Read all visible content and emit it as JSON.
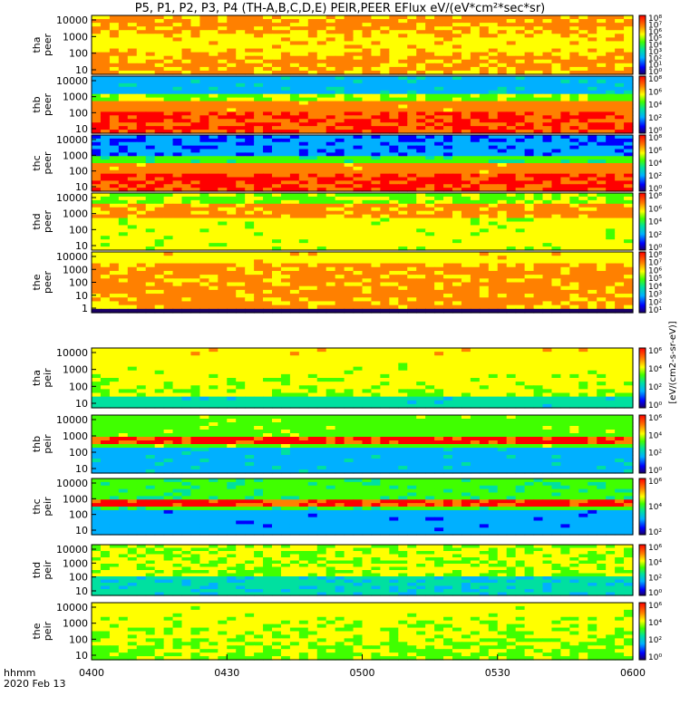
{
  "title": "P5, P1, P2, P3, P4 (TH-A,B,C,D,E) PEIR,PEER EFlux eV/(eV*cm²*sec*sr)",
  "units_label": "[eV/(cm2-s-sr-eV)]",
  "time_axis": {
    "label_line1": "hhmm",
    "label_line2": "2020 Feb 13",
    "ticks": [
      "0400",
      "0430",
      "0500",
      "0530",
      "0600"
    ]
  },
  "chart_data": [
    {
      "type": "heatmap",
      "ylabel": [
        "tha",
        "peer"
      ],
      "yticks": [
        "10000",
        "1000",
        "100",
        "10"
      ],
      "colorbar_ticks": [
        "10⁸",
        "10⁷",
        "10⁶",
        "10⁵",
        "10⁴",
        "10³",
        "10²",
        "10¹",
        "10⁰"
      ],
      "x": [
        "0400",
        "0600"
      ],
      "ylim": [
        7,
        30000
      ],
      "scale": "log"
    },
    {
      "type": "heatmap",
      "ylabel": [
        "thb",
        "peer"
      ],
      "yticks": [
        "10000",
        "1000",
        "100",
        "10"
      ],
      "colorbar_ticks": [
        "10⁸",
        "10⁶",
        "10⁴",
        "10²",
        "10⁰"
      ],
      "x": [
        "0400",
        "0600"
      ],
      "ylim": [
        7,
        30000
      ],
      "scale": "log"
    },
    {
      "type": "heatmap",
      "ylabel": [
        "thc",
        "peer"
      ],
      "yticks": [
        "10000",
        "1000",
        "100",
        "10"
      ],
      "colorbar_ticks": [
        "10⁸",
        "10⁶",
        "10⁴",
        "10²",
        "10⁰"
      ],
      "x": [
        "0400",
        "0600"
      ],
      "ylim": [
        7,
        30000
      ],
      "scale": "log"
    },
    {
      "type": "heatmap",
      "ylabel": [
        "thd",
        "peer"
      ],
      "yticks": [
        "10000",
        "1000",
        "100",
        "10"
      ],
      "colorbar_ticks": [
        "10⁸",
        "10⁶",
        "10⁴",
        "10²",
        "10⁰"
      ],
      "x": [
        "0400",
        "0600"
      ],
      "ylim": [
        7,
        30000
      ],
      "scale": "log"
    },
    {
      "type": "heatmap",
      "ylabel": [
        "the",
        "peer"
      ],
      "yticks": [
        "10000",
        "1000",
        "100",
        "10",
        "1"
      ],
      "colorbar_ticks": [
        "10⁸",
        "10⁷",
        "10⁶",
        "10⁵",
        "10⁴",
        "10³",
        "10²",
        "10¹"
      ],
      "x": [
        "0400",
        "0600"
      ],
      "ylim": [
        0.6,
        30000
      ],
      "scale": "log"
    },
    {
      "type": "heatmap",
      "ylabel": [
        "tha",
        "peir"
      ],
      "yticks": [
        "10000",
        "1000",
        "100",
        "10"
      ],
      "colorbar_ticks": [
        "10⁶",
        "10⁴",
        "10²",
        "10⁰"
      ],
      "x": [
        "0400",
        "0600"
      ],
      "ylim": [
        7,
        30000
      ],
      "scale": "log"
    },
    {
      "type": "heatmap",
      "ylabel": [
        "thb",
        "peir"
      ],
      "yticks": [
        "10000",
        "1000",
        "100",
        "10"
      ],
      "colorbar_ticks": [
        "10⁶",
        "10⁴",
        "10²",
        "10⁰"
      ],
      "x": [
        "0400",
        "0600"
      ],
      "ylim": [
        7,
        30000
      ],
      "scale": "log"
    },
    {
      "type": "heatmap",
      "ylabel": [
        "thc",
        "peir"
      ],
      "yticks": [
        "10000",
        "1000",
        "100",
        "10"
      ],
      "colorbar_ticks": [
        "10⁶",
        "10⁴",
        "10²"
      ],
      "x": [
        "0400",
        "0600"
      ],
      "ylim": [
        7,
        30000
      ],
      "scale": "log"
    },
    {
      "type": "heatmap",
      "ylabel": [
        "thd",
        "peir"
      ],
      "yticks": [
        "10000",
        "1000",
        "100",
        "10"
      ],
      "colorbar_ticks": [
        "10⁶",
        "10⁴",
        "10²",
        "10⁰"
      ],
      "x": [
        "0400",
        "0600"
      ],
      "ylim": [
        7,
        30000
      ],
      "scale": "log"
    },
    {
      "type": "heatmap",
      "ylabel": [
        "the",
        "peir"
      ],
      "yticks": [
        "10000",
        "1000",
        "100",
        "10"
      ],
      "colorbar_ticks": [
        "10⁶",
        "10⁴",
        "10²",
        "10⁰"
      ],
      "x": [
        "0400",
        "0600"
      ],
      "ylim": [
        7,
        30000
      ],
      "scale": "log"
    }
  ]
}
